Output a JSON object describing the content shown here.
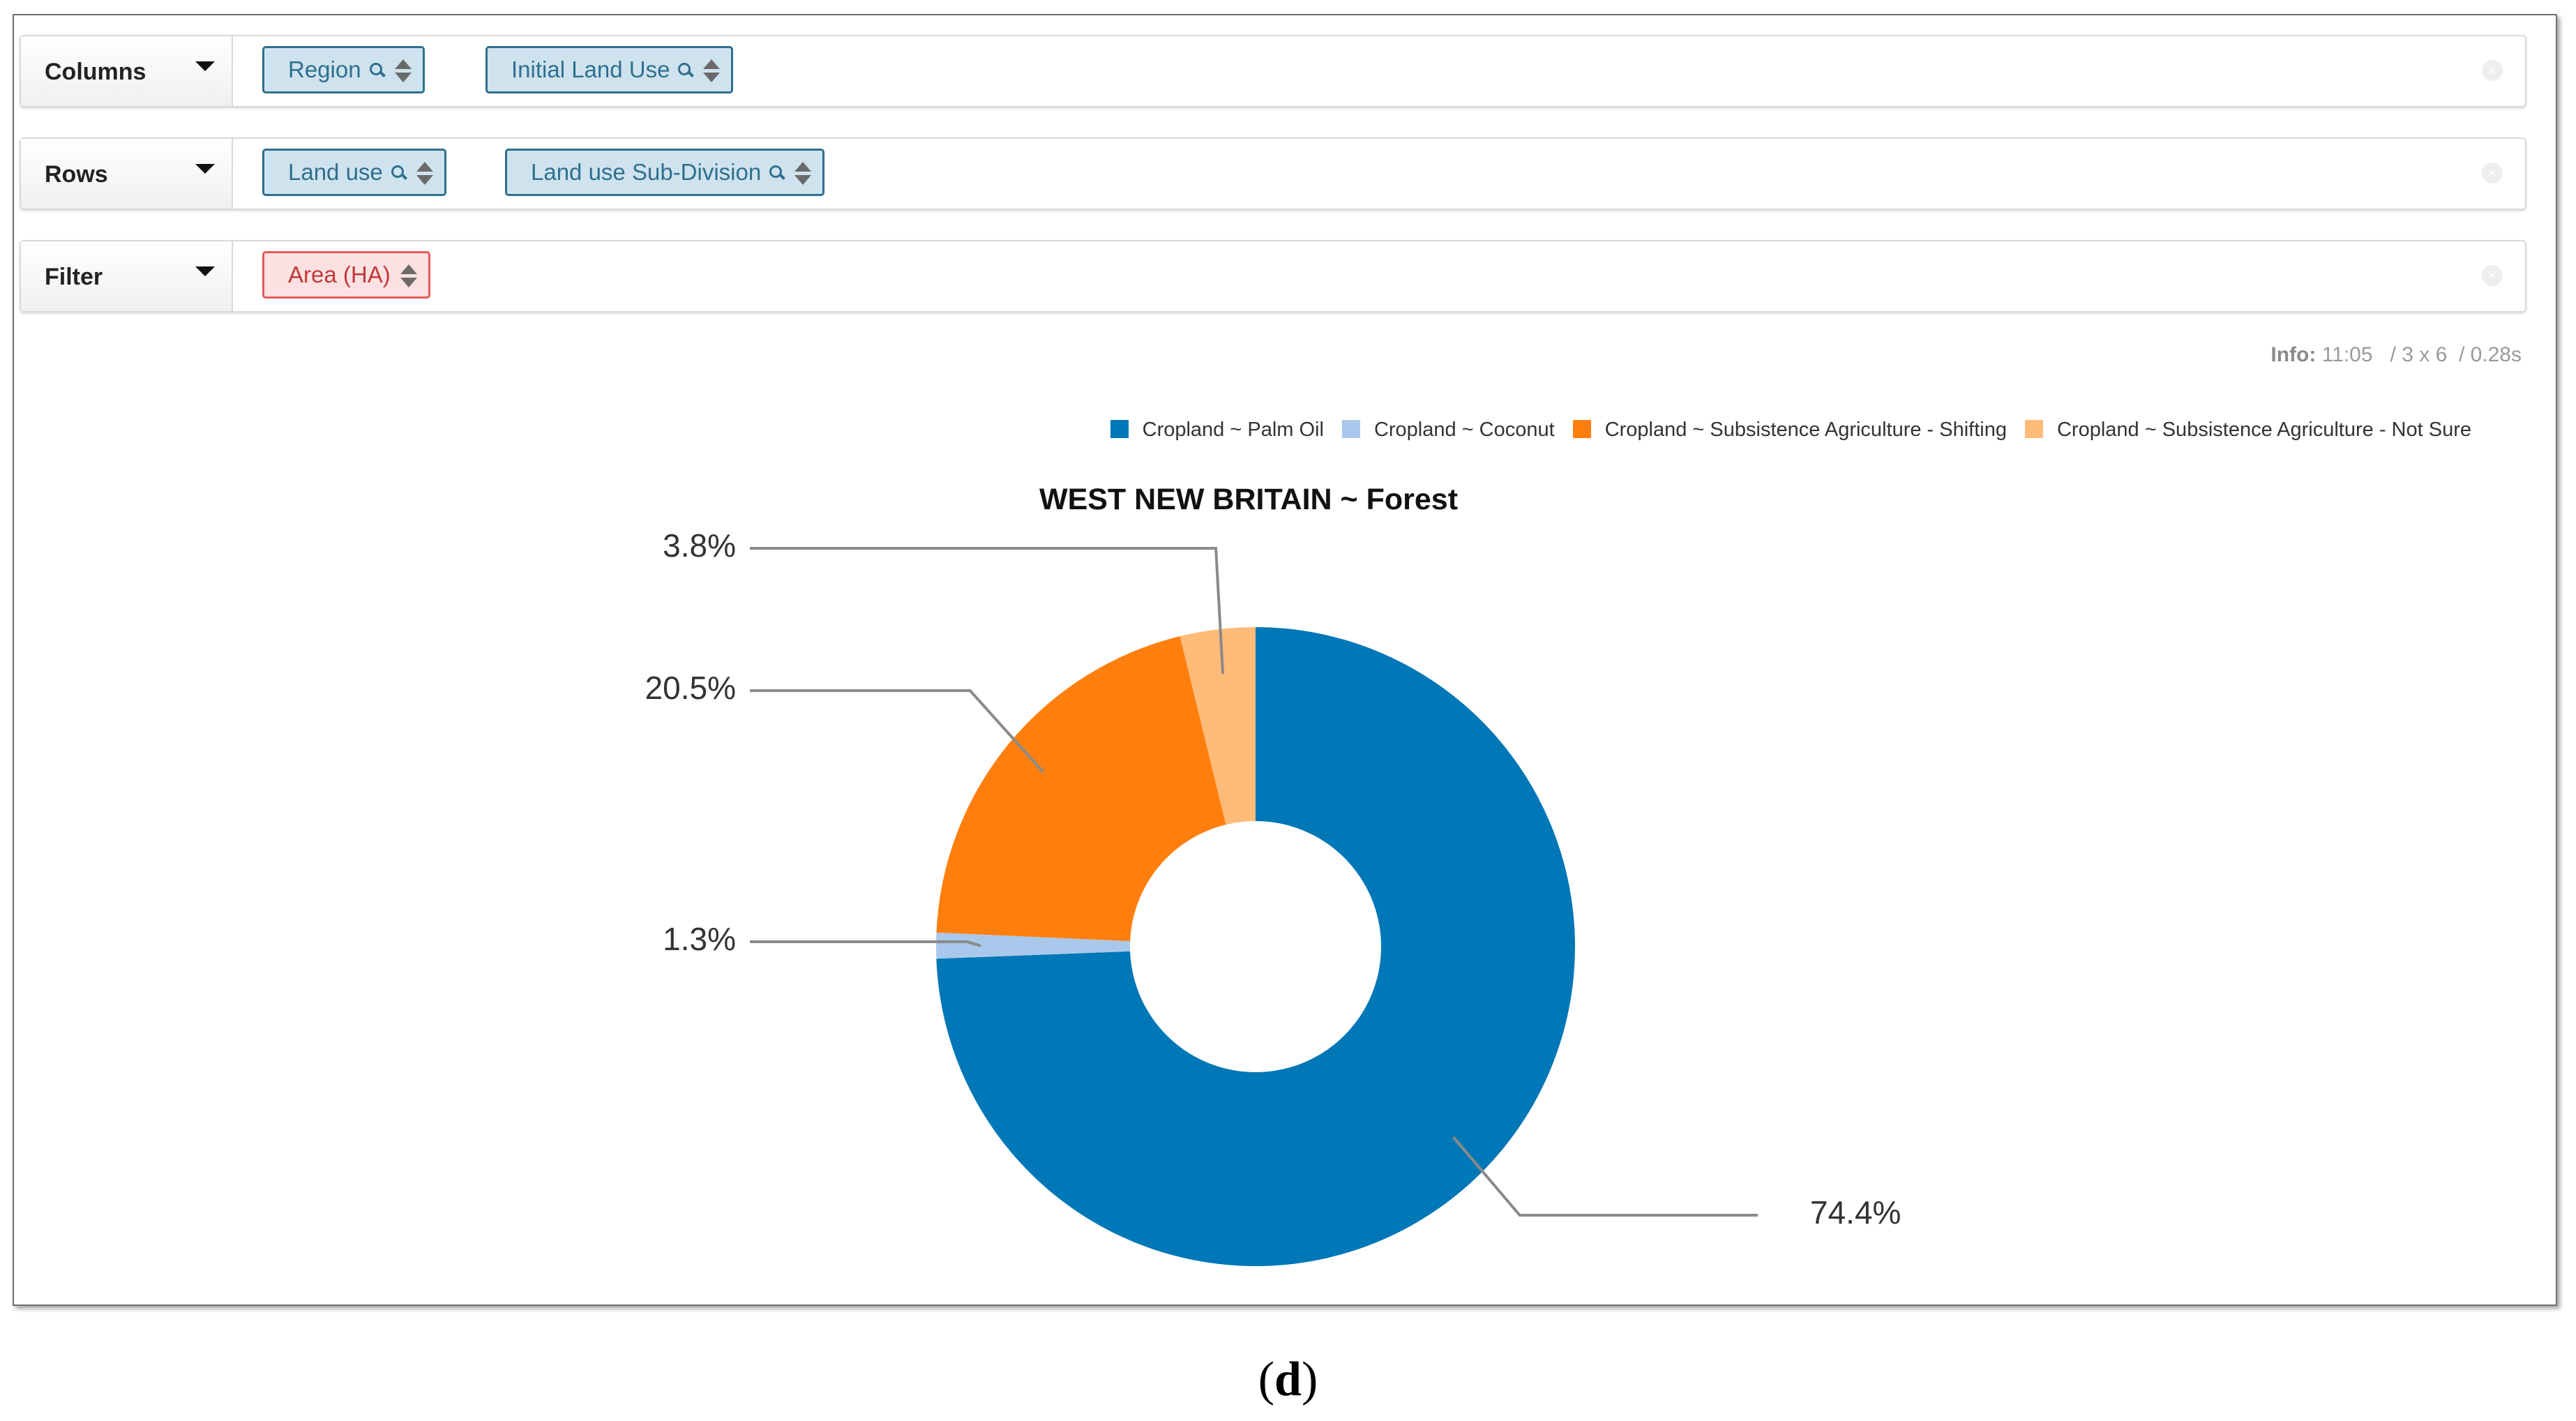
{
  "pivot": {
    "columns": {
      "label": "Columns",
      "chips": [
        {
          "label": "Region",
          "search": true
        },
        {
          "label": "Initial Land Use",
          "search": true
        }
      ]
    },
    "rows": {
      "label": "Rows",
      "chips": [
        {
          "label": "Land use",
          "search": true
        },
        {
          "label": "Land use Sub-Division",
          "search": true
        }
      ]
    },
    "filter": {
      "label": "Filter",
      "chips": [
        {
          "label": "Area (HA)",
          "search": false
        }
      ]
    },
    "clear_glyph": "×"
  },
  "info": {
    "label": "Info:",
    "time": "11:05",
    "dims": "/ 3 x 6",
    "duration": "/ 0.28s"
  },
  "chart_data": {
    "type": "pie",
    "title": "WEST NEW BRITAIN ~ Forest",
    "legend_position": "top-right",
    "donut": true,
    "slices": [
      {
        "name": "Cropland ~ Palm Oil",
        "value": 74.4,
        "label": "74.4%",
        "color": "#0077b6"
      },
      {
        "name": "Cropland ~ Coconut",
        "value": 1.3,
        "label": "1.3%",
        "color": "#a9c8eb"
      },
      {
        "name": "Cropland ~ Subsistence Agriculture - Shifting",
        "value": 20.5,
        "label": "20.5%",
        "color": "#ff7f0e"
      },
      {
        "name": "Cropland ~ Subsistence Agriculture - Not Sure",
        "value": 3.8,
        "label": "3.8%",
        "color": "#ffbb78"
      }
    ]
  },
  "caption": {
    "open": "(",
    "letter": "d",
    "close": ")"
  }
}
